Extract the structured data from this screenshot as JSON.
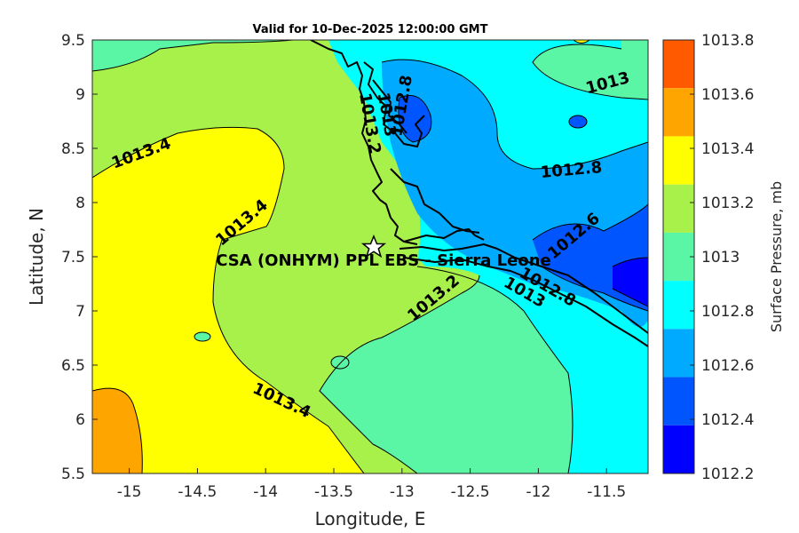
{
  "title": "Valid for 10-Dec-2025 12:00:00 GMT",
  "xlabel": "Longitude, E",
  "ylabel": "Latitude, N",
  "x_ticks": [
    "-15",
    "-14.5",
    "-14",
    "-13.5",
    "-13",
    "-12.5",
    "-12",
    "-11.5"
  ],
  "y_ticks": [
    "9.5",
    "9",
    "8.5",
    "8",
    "7.5",
    "7",
    "6.5",
    "6",
    "5.5"
  ],
  "station": {
    "label": "CSA (ONHYM) PPL EBS  - Sierra Leone",
    "symbol": "star-icon"
  },
  "contour_labels": [
    {
      "text": "1013.4"
    },
    {
      "text": "1013.4"
    },
    {
      "text": "1013.4"
    },
    {
      "text": "1013.2"
    },
    {
      "text": "1013.2"
    },
    {
      "text": "1013"
    },
    {
      "text": "1013"
    },
    {
      "text": "1012.8"
    },
    {
      "text": "1012.8"
    },
    {
      "text": "1012.8"
    },
    {
      "text": "1012.6"
    },
    {
      "text": "1013"
    }
  ],
  "colorbar": {
    "title": "Surface Pressure, mb",
    "labels": [
      "1013.8",
      "1013.6",
      "1013.4",
      "1013.2",
      "1013",
      "1012.8",
      "1012.6",
      "1012.4",
      "1012.2"
    ],
    "colors": [
      "#ff5a00",
      "#ffa500",
      "#ffff00",
      "#a8f04a",
      "#5af5a5",
      "#00ffff",
      "#00aaff",
      "#0055ff",
      "#0000ff"
    ]
  },
  "chart_data": {
    "type": "contour",
    "title": "Valid for 10-Dec-2025 12:00:00 GMT",
    "xlabel": "Longitude, E",
    "ylabel": "Latitude, N",
    "xlim": [
      -15.3,
      -11.25
    ],
    "ylim": [
      5.5,
      9.5
    ],
    "levels": [
      1012.2,
      1012.4,
      1012.6,
      1012.8,
      1013,
      1013.2,
      1013.4,
      1013.6,
      1013.8
    ],
    "colorbar_title": "Surface Pressure, mb",
    "grid": false
  }
}
